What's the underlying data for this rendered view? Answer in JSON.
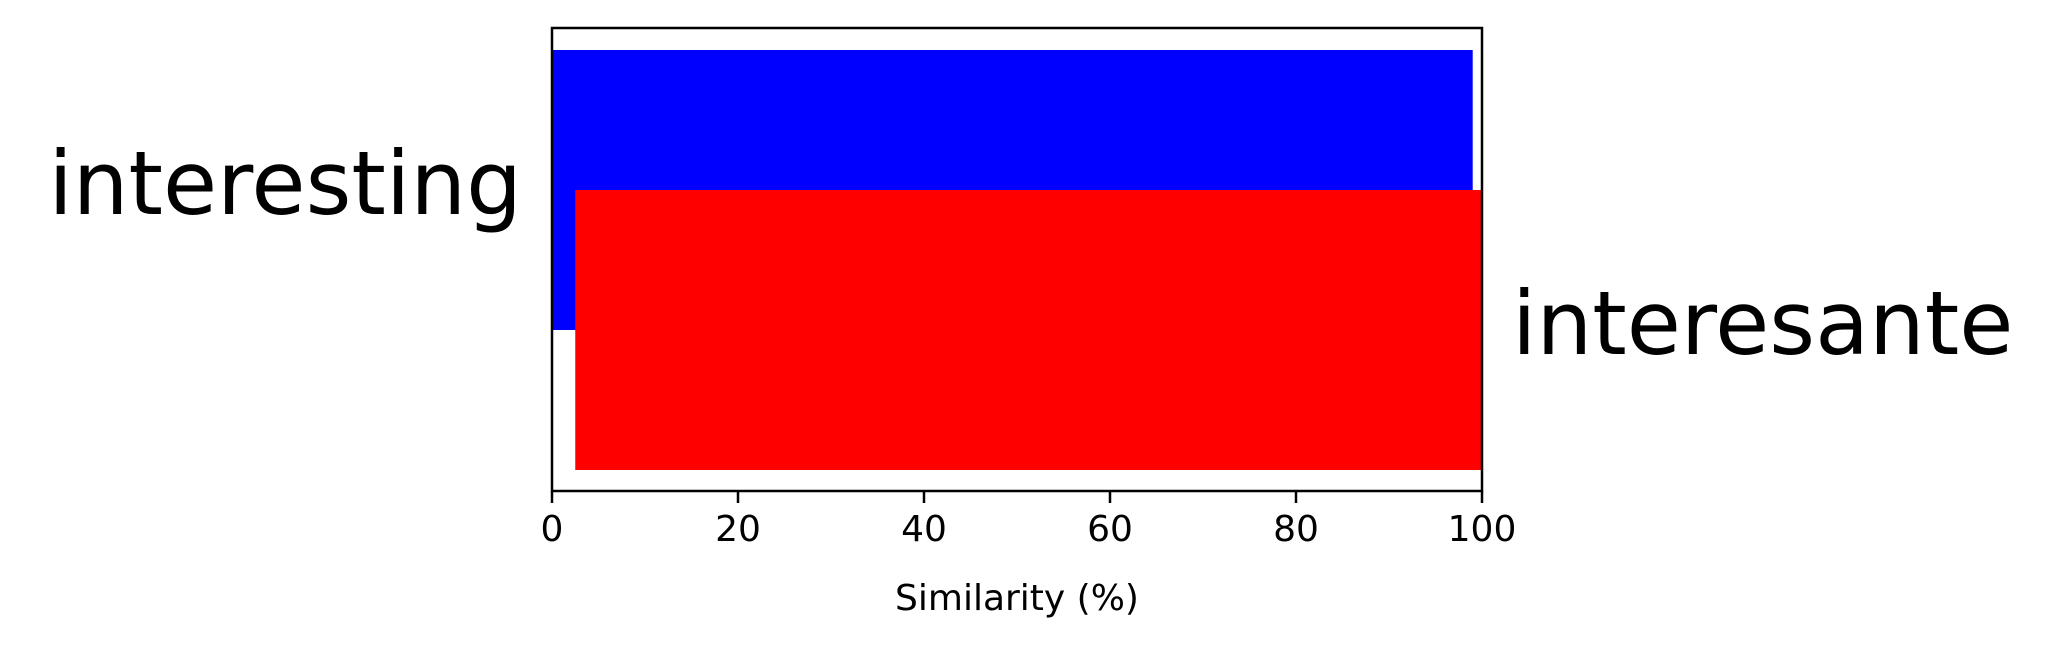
{
  "chart_data": {
    "type": "bar",
    "orientation": "horizontal",
    "title": "",
    "xlabel": "Similarity (%)",
    "ylabel": "",
    "xlim": [
      0,
      100
    ],
    "xticks": [
      0,
      20,
      40,
      60,
      80,
      100
    ],
    "grid": false,
    "legend": "none",
    "series": [
      {
        "label": "interesting",
        "start": 0,
        "end": 99,
        "label_side": "left",
        "color": "#0000ff"
      },
      {
        "label": "interesante",
        "start": 2.5,
        "end": 100,
        "label_side": "right",
        "color": "#ff0000"
      }
    ]
  }
}
